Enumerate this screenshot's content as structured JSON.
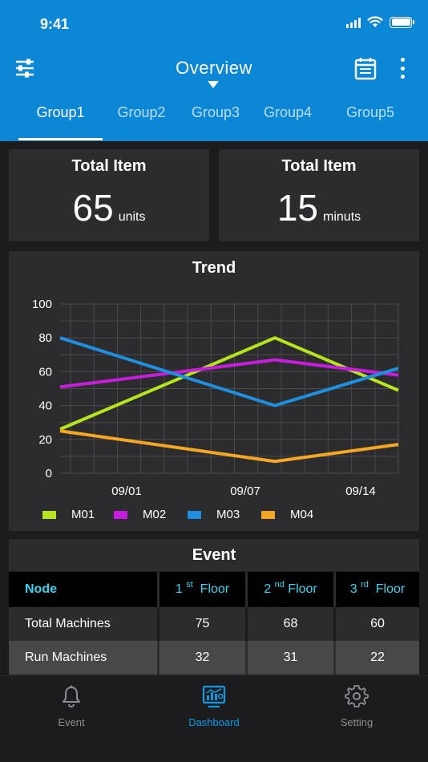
{
  "status": {
    "time": "9:41"
  },
  "topbar": {
    "title": "Overview",
    "filter_icon": "sliders-icon",
    "calendar_icon": "calendar-icon",
    "more_icon": "more-vertical-icon"
  },
  "tabs": [
    {
      "label": "Group1",
      "active": true
    },
    {
      "label": "Group2",
      "active": false
    },
    {
      "label": "Group3",
      "active": false
    },
    {
      "label": "Group4",
      "active": false
    },
    {
      "label": "Group5",
      "active": false
    }
  ],
  "kpis": [
    {
      "title": "Total Item",
      "value": "65",
      "unit": "units"
    },
    {
      "title": "Total Item",
      "value": "15",
      "unit": "minuts"
    }
  ],
  "chart_data": {
    "type": "line",
    "title": "Trend",
    "x": [
      "08/25",
      "09/01",
      "09/07",
      "09/14",
      "09/17"
    ],
    "x_ticks": [
      "09/01",
      "09/07",
      "09/14"
    ],
    "ylim": [
      0,
      100
    ],
    "y_ticks": [
      0,
      20,
      40,
      60,
      80,
      100
    ],
    "grid": true,
    "legend_position": "bottom",
    "series": [
      {
        "name": "M01",
        "color": "#b5e61d",
        "values": [
          26,
          null,
          80,
          null,
          49
        ],
        "x": [
          "08/25",
          null,
          "09/09",
          null,
          "09/17"
        ]
      },
      {
        "name": "M02",
        "color": "#c71ddc",
        "values": [
          51,
          null,
          67,
          null,
          58
        ],
        "x": [
          "08/25",
          null,
          "09/09",
          null,
          "09/17"
        ]
      },
      {
        "name": "M03",
        "color": "#1f8fe0",
        "values": [
          80,
          null,
          40,
          null,
          62
        ],
        "x": [
          "08/25",
          null,
          "09/09",
          null,
          "09/17"
        ]
      },
      {
        "name": "M04",
        "color": "#f5a623",
        "values": [
          25,
          null,
          7,
          null,
          17
        ],
        "x": [
          "08/25",
          null,
          "09/09",
          null,
          "09/17"
        ]
      }
    ]
  },
  "event": {
    "title": "Event",
    "header": {
      "node": "Node",
      "floors": [
        {
          "num": "1",
          "sup": "st",
          "label": "Floor"
        },
        {
          "num": "2",
          "sup": "nd",
          "label": "Floor"
        },
        {
          "num": "3",
          "sup": "rd",
          "label": "Floor"
        }
      ]
    },
    "rows": [
      {
        "label": "Total Machines",
        "values": [
          "75",
          "68",
          "60"
        ]
      },
      {
        "label": "Run Machines",
        "values": [
          "32",
          "31",
          "22"
        ]
      }
    ]
  },
  "nav": [
    {
      "label": "Event",
      "icon": "bell-icon",
      "active": false
    },
    {
      "label": "Dashboard",
      "icon": "dashboard-icon",
      "active": true
    },
    {
      "label": "Setting",
      "icon": "gear-icon",
      "active": false
    }
  ],
  "colors": {
    "header": "#0b87d6",
    "accent": "#35d6f0",
    "card": "#2c2c2e",
    "active_nav": "#0b9be8"
  }
}
